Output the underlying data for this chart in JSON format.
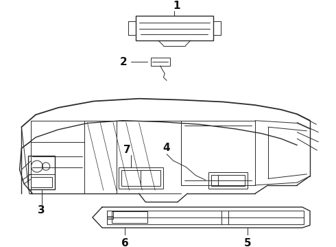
{
  "bg_color": "#ffffff",
  "line_color": "#2a2a2a",
  "label_color": "#111111",
  "label_fontsize": 10.5,
  "figsize": [
    4.9,
    3.6
  ],
  "dpi": 100
}
